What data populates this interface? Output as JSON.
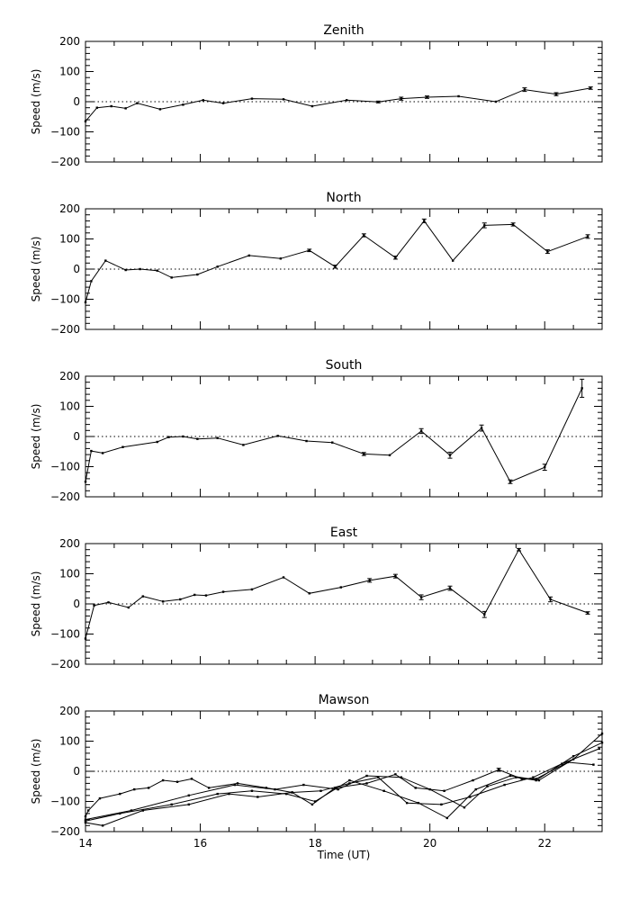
{
  "chart_data": [
    {
      "type": "line",
      "title": "Zenith",
      "ylabel": "Speed (m/s)",
      "xlabel": "",
      "xlim": [
        14,
        23
      ],
      "ylim": [
        -200,
        200
      ],
      "x_ticks": [],
      "y_ticks": [
        "200",
        "100",
        "0",
        "−100",
        "−200"
      ],
      "y_tick_values": [
        200,
        100,
        0,
        -100,
        -200
      ],
      "zero_line": true,
      "series": [
        {
          "x": [
            14.0,
            14.2,
            14.45,
            14.7,
            14.9,
            15.3,
            15.7,
            16.05,
            16.4,
            16.9,
            17.45,
            17.95,
            18.55,
            19.1,
            19.5,
            19.95,
            20.5,
            21.15,
            21.65,
            22.2,
            22.8
          ],
          "values": [
            -65,
            -20,
            -15,
            -22,
            -5,
            -25,
            -10,
            5,
            -5,
            10,
            8,
            -15,
            5,
            -1,
            10,
            15,
            18,
            0,
            40,
            25,
            45
          ],
          "errors": [
            0,
            0,
            0,
            0,
            0,
            0,
            0,
            0,
            0,
            0,
            0,
            0,
            0,
            3,
            5,
            4,
            0,
            0,
            6,
            5,
            4
          ]
        }
      ]
    },
    {
      "type": "line",
      "title": "North",
      "ylabel": "Speed (m/s)",
      "xlabel": "",
      "xlim": [
        14,
        23
      ],
      "ylim": [
        -200,
        200
      ],
      "x_ticks": [],
      "y_ticks": [
        "200",
        "100",
        "0",
        "−100",
        "−200"
      ],
      "y_tick_values": [
        200,
        100,
        0,
        -100,
        -200
      ],
      "zero_line": true,
      "series": [
        {
          "x": [
            14.0,
            14.1,
            14.35,
            14.7,
            14.95,
            15.25,
            15.5,
            15.95,
            16.3,
            16.85,
            17.4,
            17.9,
            18.35,
            18.85,
            19.4,
            19.9,
            20.4,
            20.95,
            21.45,
            22.05,
            22.75
          ],
          "values": [
            -110,
            -40,
            28,
            -3,
            0,
            -5,
            -28,
            -18,
            8,
            45,
            35,
            62,
            8,
            112,
            38,
            160,
            28,
            145,
            148,
            58,
            108
          ],
          "errors": [
            0,
            0,
            0,
            0,
            0,
            0,
            0,
            0,
            0,
            0,
            0,
            4,
            5,
            5,
            5,
            6,
            0,
            8,
            5,
            6,
            6
          ]
        }
      ]
    },
    {
      "type": "line",
      "title": "South",
      "ylabel": "Speed (m/s)",
      "xlabel": "",
      "xlim": [
        14,
        23
      ],
      "ylim": [
        -200,
        200
      ],
      "x_ticks": [],
      "y_ticks": [
        "200",
        "100",
        "0",
        "−100",
        "−200"
      ],
      "y_tick_values": [
        200,
        100,
        0,
        -100,
        -200
      ],
      "zero_line": true,
      "series": [
        {
          "x": [
            14.0,
            14.1,
            14.3,
            14.65,
            15.25,
            15.45,
            15.7,
            15.95,
            16.3,
            16.75,
            17.35,
            17.85,
            18.3,
            18.85,
            19.3,
            19.85,
            20.35,
            20.9,
            21.4,
            22.0,
            22.65
          ],
          "values": [
            -150,
            -48,
            -55,
            -35,
            -18,
            -2,
            0,
            -8,
            -5,
            -28,
            2,
            -15,
            -20,
            -58,
            -62,
            18,
            -62,
            28,
            -150,
            -102,
            160
          ],
          "errors": [
            0,
            0,
            0,
            0,
            0,
            0,
            0,
            0,
            0,
            0,
            0,
            0,
            0,
            5,
            0,
            8,
            10,
            10,
            6,
            10,
            30
          ]
        }
      ]
    },
    {
      "type": "line",
      "title": "East",
      "ylabel": "Speed (m/s)",
      "xlabel": "",
      "xlim": [
        14,
        23
      ],
      "ylim": [
        -200,
        200
      ],
      "x_ticks": [],
      "y_ticks": [
        "200",
        "100",
        "0",
        "−100",
        "−200"
      ],
      "y_tick_values": [
        200,
        100,
        0,
        -100,
        -200
      ],
      "zero_line": true,
      "series": [
        {
          "x": [
            14.0,
            14.15,
            14.4,
            14.75,
            15.0,
            15.35,
            15.65,
            15.9,
            16.1,
            16.4,
            16.9,
            17.45,
            17.9,
            18.45,
            18.95,
            19.4,
            19.85,
            20.35,
            20.95,
            21.55,
            22.1,
            22.75
          ],
          "values": [
            -115,
            -5,
            5,
            -12,
            25,
            8,
            15,
            30,
            28,
            40,
            48,
            88,
            35,
            55,
            78,
            92,
            22,
            52,
            -35,
            180,
            15,
            -30
          ],
          "errors": [
            0,
            0,
            0,
            0,
            0,
            0,
            0,
            0,
            0,
            0,
            0,
            0,
            0,
            0,
            6,
            6,
            8,
            7,
            10,
            4,
            8,
            4
          ]
        }
      ]
    },
    {
      "type": "line",
      "title": "Mawson",
      "ylabel": "Speed (m/s)",
      "xlabel": "Time (UT)",
      "xlim": [
        14,
        23
      ],
      "ylim": [
        -200,
        200
      ],
      "x_ticks": [
        "14",
        "16",
        "18",
        "20",
        "22"
      ],
      "x_tick_values": [
        14,
        16,
        18,
        20,
        22
      ],
      "y_ticks": [
        "200",
        "100",
        "0",
        "−100",
        "−200"
      ],
      "y_tick_values": [
        200,
        100,
        0,
        -100,
        -200
      ],
      "zero_line": true,
      "series": [
        {
          "x": [
            14.0,
            14.05,
            14.25,
            14.6,
            14.85,
            15.1,
            15.35,
            15.6,
            15.85,
            16.15,
            16.65,
            17.15,
            17.6,
            17.95,
            18.35,
            18.9,
            19.4,
            19.75,
            20.25,
            20.75,
            21.2,
            21.6,
            21.85,
            22.4,
            22.85
          ],
          "values": [
            -150,
            -130,
            -90,
            -75,
            -60,
            -55,
            -30,
            -35,
            -25,
            -55,
            -40,
            -55,
            -70,
            -110,
            -55,
            -40,
            -10,
            -55,
            -65,
            -30,
            5,
            -25,
            -25,
            30,
            22
          ],
          "errors": [
            0,
            0,
            0,
            0,
            0,
            0,
            0,
            0,
            0,
            0,
            0,
            0,
            0,
            0,
            0,
            0,
            0,
            0,
            0,
            0,
            5,
            0,
            0,
            0,
            0
          ]
        },
        {
          "x": [
            14.0,
            14.3,
            15.0,
            15.8,
            16.5,
            17.0,
            17.6,
            18.1,
            18.6,
            19.1,
            19.6,
            20.2,
            20.7,
            21.3,
            21.8,
            22.3,
            22.95
          ],
          "values": [
            -170,
            -180,
            -130,
            -110,
            -75,
            -85,
            -70,
            -65,
            -40,
            -20,
            -105,
            -110,
            -85,
            -45,
            -20,
            25,
            75
          ]
        },
        {
          "x": [
            14.0,
            14.6,
            15.5,
            16.3,
            16.9,
            17.5,
            18.0,
            18.6,
            19.2,
            19.8,
            20.3,
            20.8,
            21.4,
            21.9,
            22.5,
            23.0
          ],
          "values": [
            -165,
            -140,
            -110,
            -75,
            -65,
            -75,
            -100,
            -30,
            -65,
            -105,
            -155,
            -60,
            -15,
            -30,
            40,
            125
          ]
        },
        {
          "x": [
            14.0,
            14.8,
            15.8,
            16.6,
            17.3,
            17.8,
            18.4,
            18.9,
            19.5,
            20.0,
            20.6,
            21.0,
            21.5,
            21.85,
            22.5,
            23.0
          ],
          "values": [
            -160,
            -130,
            -80,
            -45,
            -60,
            -45,
            -60,
            -15,
            -20,
            -60,
            -120,
            -50,
            -20,
            -30,
            50,
            95
          ]
        }
      ]
    }
  ]
}
